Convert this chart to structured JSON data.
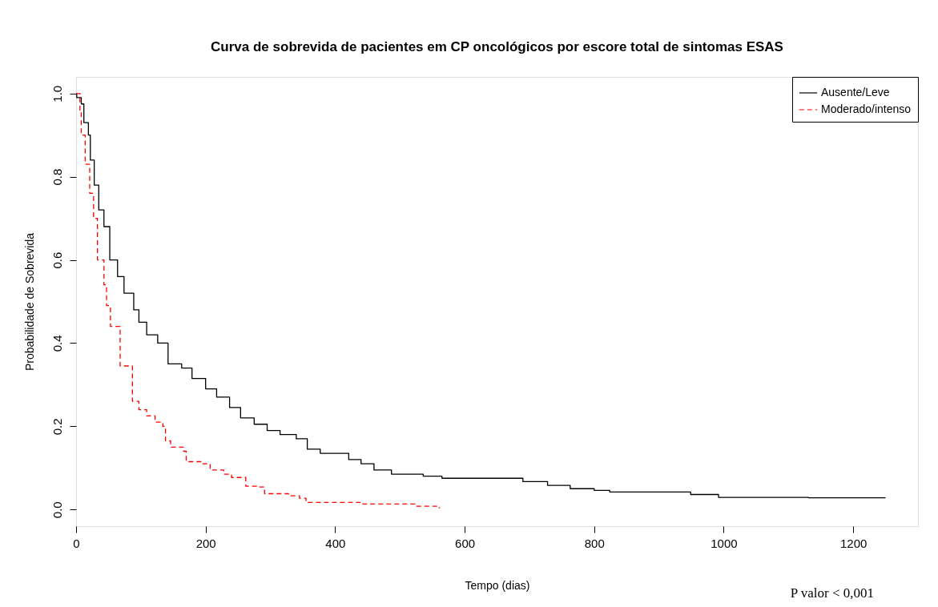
{
  "chart_data": {
    "type": "step",
    "title": "Curva de sobrevida de pacientes em CP oncológicos por escore total de sintomas ESAS",
    "xlabel": "Tempo (dias)",
    "ylabel": "Probabilidade de Sobrevida",
    "xlim": [
      0,
      1300
    ],
    "xticks": [
      0,
      200,
      400,
      600,
      800,
      1000,
      1200
    ],
    "ylim": [
      -0.04,
      1.04
    ],
    "yticks": [
      {
        "value": 0,
        "label": "0.0"
      },
      {
        "value": 0.2,
        "label": "0.2"
      },
      {
        "value": 0.4,
        "label": "0.4"
      },
      {
        "value": 0.6,
        "label": "0.6"
      },
      {
        "value": 0.8,
        "label": "0.8"
      },
      {
        "value": 1,
        "label": "1.0"
      }
    ],
    "legend": "top right",
    "grid": false,
    "annotations": [
      "P valor < 0,001"
    ],
    "series": [
      {
        "name": "Ausente/Leve",
        "color": "#000000",
        "line_style": "solid",
        "x": [
          0,
          1,
          8,
          12,
          19,
          22,
          28,
          35,
          43,
          52,
          64,
          74,
          89,
          97,
          109,
          126,
          142,
          163,
          179,
          200,
          217,
          237,
          254,
          275,
          295,
          315,
          340,
          357,
          377,
          421,
          440,
          460,
          487,
          536,
          565,
          690,
          728,
          763,
          800,
          824,
          949,
          992,
          1131,
          1250
        ],
        "values": [
          1.0,
          0.99,
          0.975,
          0.93,
          0.9,
          0.84,
          0.78,
          0.72,
          0.68,
          0.6,
          0.56,
          0.52,
          0.48,
          0.45,
          0.42,
          0.4,
          0.35,
          0.34,
          0.315,
          0.29,
          0.27,
          0.245,
          0.22,
          0.205,
          0.19,
          0.18,
          0.17,
          0.145,
          0.135,
          0.12,
          0.11,
          0.095,
          0.085,
          0.08,
          0.075,
          0.067,
          0.058,
          0.05,
          0.046,
          0.042,
          0.036,
          0.029,
          0.028,
          0.028
        ]
      },
      {
        "name": "Moderado/intenso",
        "color": "#ff0000",
        "line_style": "dashed",
        "x": [
          0,
          6,
          8,
          14,
          21,
          27,
          33,
          43,
          47,
          53,
          68,
          87,
          97,
          109,
          122,
          134,
          138,
          146,
          166,
          170,
          195,
          207,
          228,
          240,
          262,
          279,
          291,
          328,
          345,
          355,
          439,
          524,
          558,
          562
        ],
        "values": [
          1.0,
          0.955,
          0.9,
          0.83,
          0.76,
          0.7,
          0.6,
          0.54,
          0.49,
          0.44,
          0.345,
          0.26,
          0.24,
          0.225,
          0.21,
          0.2,
          0.165,
          0.15,
          0.14,
          0.115,
          0.11,
          0.095,
          0.085,
          0.077,
          0.056,
          0.054,
          0.038,
          0.033,
          0.027,
          0.017,
          0.013,
          0.008,
          0.004,
          0.004
        ]
      }
    ]
  }
}
